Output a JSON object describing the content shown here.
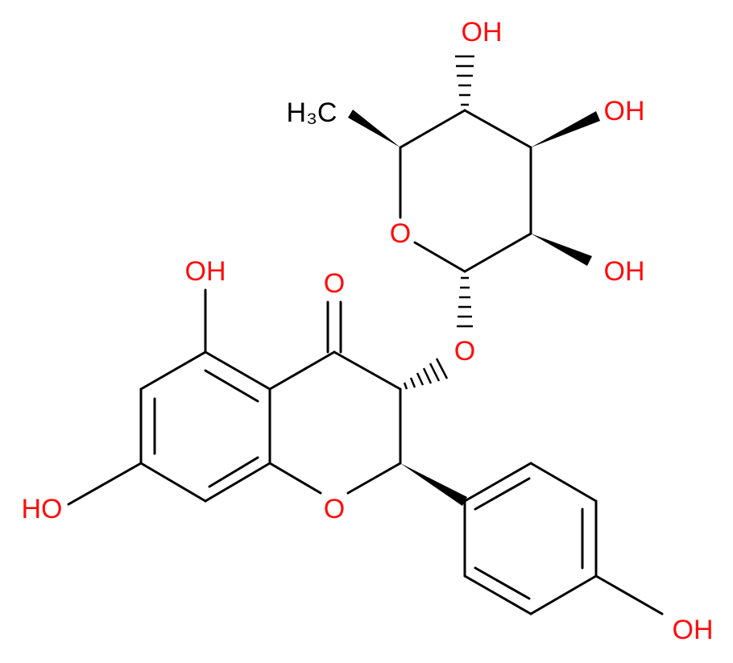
{
  "nodes": [
    {
      "label": "OH"
    },
    {
      "label": "H₃C"
    },
    {
      "label": "OH"
    },
    {
      "label": "O"
    },
    {
      "label": "OH"
    },
    {
      "label": "OH"
    },
    {
      "label": "O"
    },
    {
      "label": "O"
    },
    {
      "label": "O"
    },
    {
      "label": "HO"
    },
    {
      "label": "OH"
    }
  ]
}
